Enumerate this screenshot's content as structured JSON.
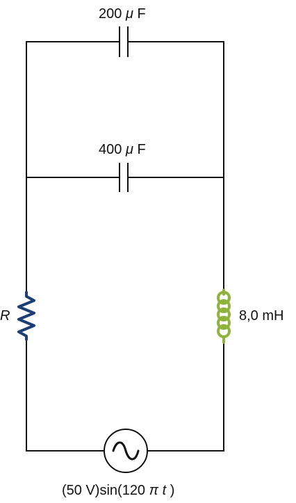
{
  "diagram": {
    "type": "ac circuit",
    "capacitor_top": {
      "value": "200",
      "unit_prefix": "μ",
      "unit": "F"
    },
    "capacitor_middle": {
      "value": "400",
      "unit_prefix": "μ",
      "unit": "F"
    },
    "resistor": {
      "label": "R"
    },
    "inductor": {
      "label": "8,0 mH"
    },
    "source": {
      "label_prefix": "(50 V)sin(120",
      "label_pi": "π",
      "label_t": "t",
      "label_suffix": ")"
    }
  },
  "colors": {
    "wire": "#111111",
    "resistor": "#1d3f75",
    "inductor": "#8fb33c",
    "text": "#111111"
  }
}
